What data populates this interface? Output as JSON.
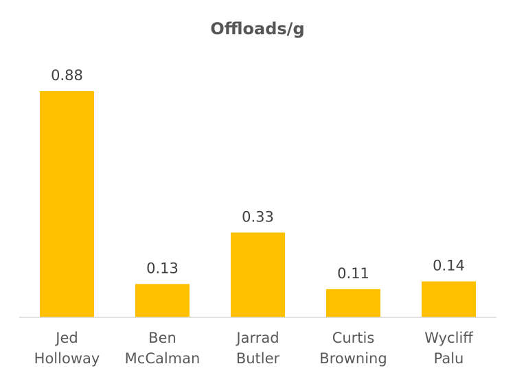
{
  "chart_data": {
    "type": "bar",
    "title": "Offloads/g",
    "xlabel": "",
    "ylabel": "",
    "categories": [
      [
        "Jed",
        "Holloway"
      ],
      [
        "Ben",
        "McCalman"
      ],
      [
        "Jarrad",
        "Butler"
      ],
      [
        "Curtis",
        "Browning"
      ],
      [
        "Wycliff",
        "Palu"
      ]
    ],
    "values": [
      0.88,
      0.13,
      0.33,
      0.11,
      0.14
    ],
    "value_labels": [
      "0.88",
      "0.13",
      "0.33",
      "0.11",
      "0.14"
    ],
    "ylim": [
      0,
      1
    ],
    "grid": false,
    "legend": "none",
    "colors": {
      "bar": "#FFC000",
      "axis": "#D9D9D9"
    }
  }
}
